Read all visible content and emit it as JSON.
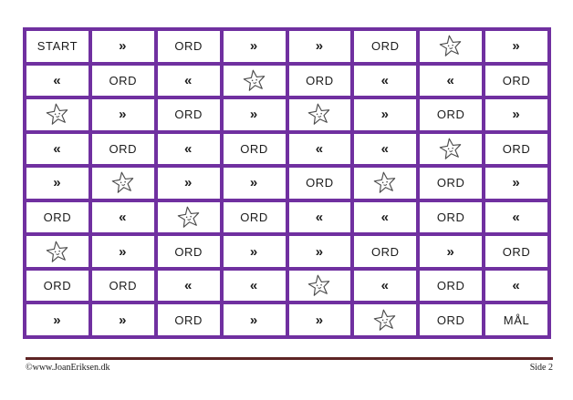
{
  "page": {
    "background": "#ffffff"
  },
  "board": {
    "grid_color": "#7030A0",
    "text_color": "#1c1c1c",
    "columns": 8,
    "cell_tokens": {
      "start_label": "START",
      "word_label": "ORD",
      "goal_label": "MÅL",
      "forward_arrow": "»",
      "backward_arrow": "«",
      "star_icon": "★"
    },
    "rows": [
      [
        "START",
        "»",
        "ORD",
        "»",
        "»",
        "ORD",
        "★",
        "»"
      ],
      [
        "«",
        "ORD",
        "«",
        "★",
        "ORD",
        "«",
        "«",
        "ORD"
      ],
      [
        "★",
        "»",
        "ORD",
        "»",
        "★",
        "»",
        "ORD",
        "»"
      ],
      [
        "«",
        "ORD",
        "«",
        "ORD",
        "«",
        "«",
        "★",
        "ORD"
      ],
      [
        "»",
        "★",
        "»",
        "»",
        "ORD",
        "★",
        "ORD",
        "»"
      ],
      [
        "ORD",
        "«",
        "★",
        "ORD",
        "«",
        "«",
        "ORD",
        "«"
      ],
      [
        "★",
        "»",
        "ORD",
        "»",
        "»",
        "ORD",
        "»",
        "ORD"
      ],
      [
        "ORD",
        "ORD",
        "«",
        "«",
        "★",
        "«",
        "ORD",
        "«"
      ],
      [
        "»",
        "»",
        "ORD",
        "»",
        "»",
        "★",
        "ORD",
        "MÅL"
      ]
    ]
  },
  "footer": {
    "rule_color": "#5E2424",
    "copyright": "©www.JoanEriksen.dk",
    "page_label": "Side 2"
  }
}
